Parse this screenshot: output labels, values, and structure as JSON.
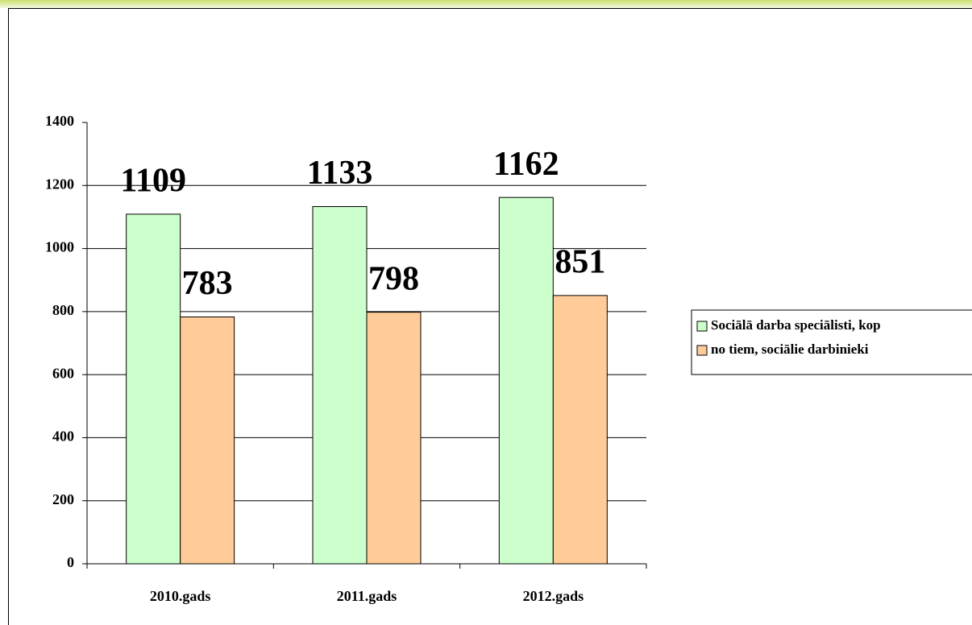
{
  "chart_data": {
    "type": "bar",
    "categories": [
      "2010.gads",
      "2011.gads",
      "2012.gads"
    ],
    "series": [
      {
        "name": "Sociālā darba speciālisti, kop",
        "color": "#ccffcc",
        "values": [
          1109,
          1133,
          1162
        ]
      },
      {
        "name": "no tiem, sociālie darbinieki",
        "color": "#ffcc99",
        "values": [
          783,
          798,
          851
        ]
      }
    ],
    "ylim": [
      0,
      1400
    ],
    "yticks": [
      0,
      200,
      400,
      600,
      800,
      1000,
      1200,
      1400
    ],
    "grid": true,
    "legend": "right"
  }
}
